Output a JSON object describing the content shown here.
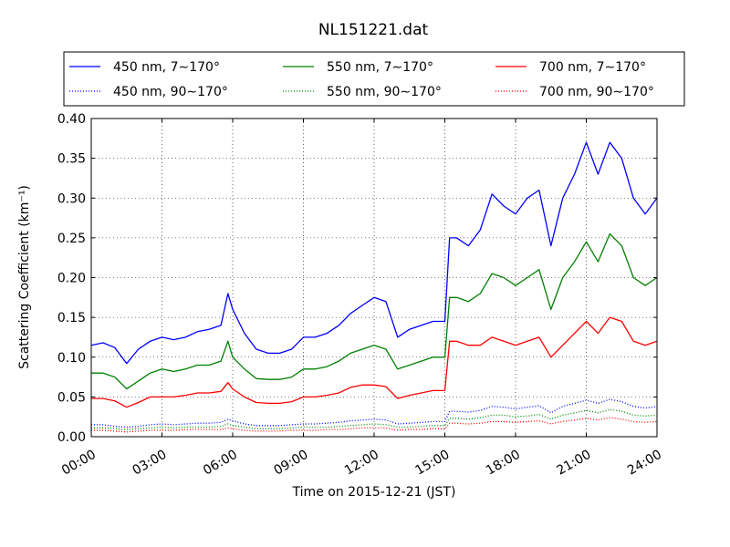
{
  "chart_data": {
    "type": "line",
    "title": "NL151221.dat",
    "xlabel": "Time on 2015-12-21 (JST)",
    "ylabel": "Scattering Coefficient (km⁻¹)",
    "xlim": [
      0,
      24
    ],
    "ylim": [
      0,
      0.4
    ],
    "x_ticks": [
      0,
      3,
      6,
      9,
      12,
      15,
      18,
      21,
      24
    ],
    "x_tick_labels": [
      "00:00",
      "03:00",
      "06:00",
      "09:00",
      "12:00",
      "15:00",
      "18:00",
      "21:00",
      "24:00"
    ],
    "y_ticks": [
      0,
      0.05,
      0.1,
      0.15,
      0.2,
      0.25,
      0.3,
      0.35,
      0.4
    ],
    "y_tick_labels": [
      "0.00",
      "0.05",
      "0.10",
      "0.15",
      "0.20",
      "0.25",
      "0.30",
      "0.35",
      "0.40"
    ],
    "grid": true,
    "legend_position": "top",
    "x": [
      0,
      0.5,
      1.0,
      1.5,
      2.0,
      2.5,
      3.0,
      3.5,
      4.0,
      4.5,
      5.0,
      5.5,
      5.8,
      6.0,
      6.5,
      7.0,
      7.5,
      8.0,
      8.5,
      9.0,
      9.5,
      10.0,
      10.5,
      11.0,
      11.5,
      12.0,
      12.5,
      13.0,
      13.5,
      14.0,
      14.5,
      15.0,
      15.2,
      15.5,
      16.0,
      16.5,
      17.0,
      17.5,
      18.0,
      18.5,
      19.0,
      19.5,
      20.0,
      20.5,
      21.0,
      21.5,
      22.0,
      22.5,
      23.0,
      23.5,
      24.0
    ],
    "series": [
      {
        "name": "450 nm, 7∼170°",
        "color": "#0000ff",
        "style": "solid",
        "values": [
          0.115,
          0.118,
          0.112,
          0.092,
          0.11,
          0.12,
          0.125,
          0.122,
          0.125,
          0.132,
          0.135,
          0.14,
          0.18,
          0.16,
          0.13,
          0.11,
          0.105,
          0.105,
          0.11,
          0.125,
          0.125,
          0.13,
          0.14,
          0.155,
          0.165,
          0.175,
          0.17,
          0.125,
          0.135,
          0.14,
          0.145,
          0.145,
          0.25,
          0.25,
          0.24,
          0.26,
          0.305,
          0.29,
          0.28,
          0.3,
          0.31,
          0.24,
          0.3,
          0.33,
          0.37,
          0.33,
          0.37,
          0.35,
          0.3,
          0.28,
          0.3
        ]
      },
      {
        "name": "550 nm, 7∼170°",
        "color": "#008000",
        "style": "solid",
        "values": [
          0.08,
          0.08,
          0.075,
          0.06,
          0.07,
          0.08,
          0.085,
          0.082,
          0.085,
          0.09,
          0.09,
          0.095,
          0.12,
          0.1,
          0.085,
          0.073,
          0.072,
          0.072,
          0.075,
          0.085,
          0.085,
          0.088,
          0.095,
          0.105,
          0.11,
          0.115,
          0.11,
          0.085,
          0.09,
          0.095,
          0.1,
          0.1,
          0.175,
          0.175,
          0.17,
          0.18,
          0.205,
          0.2,
          0.19,
          0.2,
          0.21,
          0.16,
          0.2,
          0.22,
          0.245,
          0.22,
          0.255,
          0.24,
          0.2,
          0.19,
          0.2
        ]
      },
      {
        "name": "700 nm, 7∼170°",
        "color": "#ff0000",
        "style": "solid",
        "values": [
          0.048,
          0.048,
          0.045,
          0.037,
          0.043,
          0.05,
          0.05,
          0.05,
          0.052,
          0.055,
          0.055,
          0.057,
          0.068,
          0.06,
          0.05,
          0.043,
          0.042,
          0.042,
          0.044,
          0.05,
          0.05,
          0.052,
          0.055,
          0.062,
          0.065,
          0.065,
          0.063,
          0.048,
          0.052,
          0.055,
          0.058,
          0.058,
          0.12,
          0.12,
          0.115,
          0.115,
          0.125,
          0.12,
          0.115,
          0.12,
          0.125,
          0.1,
          0.115,
          0.13,
          0.145,
          0.13,
          0.15,
          0.145,
          0.12,
          0.115,
          0.12
        ]
      },
      {
        "name": "450 nm, 90∼170°",
        "color": "#0000ff",
        "style": "dotted",
        "values": [
          0.015,
          0.015,
          0.013,
          0.012,
          0.013,
          0.015,
          0.016,
          0.015,
          0.016,
          0.017,
          0.017,
          0.018,
          0.022,
          0.02,
          0.016,
          0.014,
          0.014,
          0.014,
          0.015,
          0.016,
          0.016,
          0.017,
          0.018,
          0.02,
          0.021,
          0.022,
          0.021,
          0.016,
          0.017,
          0.018,
          0.019,
          0.019,
          0.032,
          0.032,
          0.031,
          0.033,
          0.038,
          0.037,
          0.035,
          0.037,
          0.039,
          0.03,
          0.038,
          0.042,
          0.046,
          0.042,
          0.047,
          0.044,
          0.038,
          0.036,
          0.038
        ]
      },
      {
        "name": "550 nm, 90∼170°",
        "color": "#008000",
        "style": "dotted",
        "values": [
          0.011,
          0.011,
          0.01,
          0.009,
          0.01,
          0.011,
          0.012,
          0.011,
          0.012,
          0.012,
          0.012,
          0.013,
          0.016,
          0.014,
          0.012,
          0.01,
          0.01,
          0.01,
          0.011,
          0.012,
          0.012,
          0.012,
          0.013,
          0.014,
          0.015,
          0.016,
          0.015,
          0.012,
          0.012,
          0.013,
          0.014,
          0.014,
          0.023,
          0.023,
          0.022,
          0.024,
          0.027,
          0.027,
          0.025,
          0.026,
          0.028,
          0.022,
          0.027,
          0.03,
          0.033,
          0.03,
          0.034,
          0.032,
          0.027,
          0.026,
          0.027
        ]
      },
      {
        "name": "700 nm, 90∼170°",
        "color": "#ff0000",
        "style": "dotted",
        "values": [
          0.008,
          0.008,
          0.007,
          0.006,
          0.007,
          0.008,
          0.008,
          0.008,
          0.009,
          0.009,
          0.009,
          0.009,
          0.011,
          0.01,
          0.008,
          0.007,
          0.007,
          0.007,
          0.008,
          0.008,
          0.008,
          0.009,
          0.009,
          0.01,
          0.011,
          0.011,
          0.011,
          0.008,
          0.009,
          0.009,
          0.01,
          0.01,
          0.017,
          0.017,
          0.016,
          0.017,
          0.019,
          0.019,
          0.018,
          0.019,
          0.02,
          0.016,
          0.019,
          0.021,
          0.023,
          0.021,
          0.024,
          0.022,
          0.019,
          0.018,
          0.019
        ]
      }
    ],
    "legend_order": [
      0,
      1,
      2,
      3,
      4,
      5
    ]
  }
}
